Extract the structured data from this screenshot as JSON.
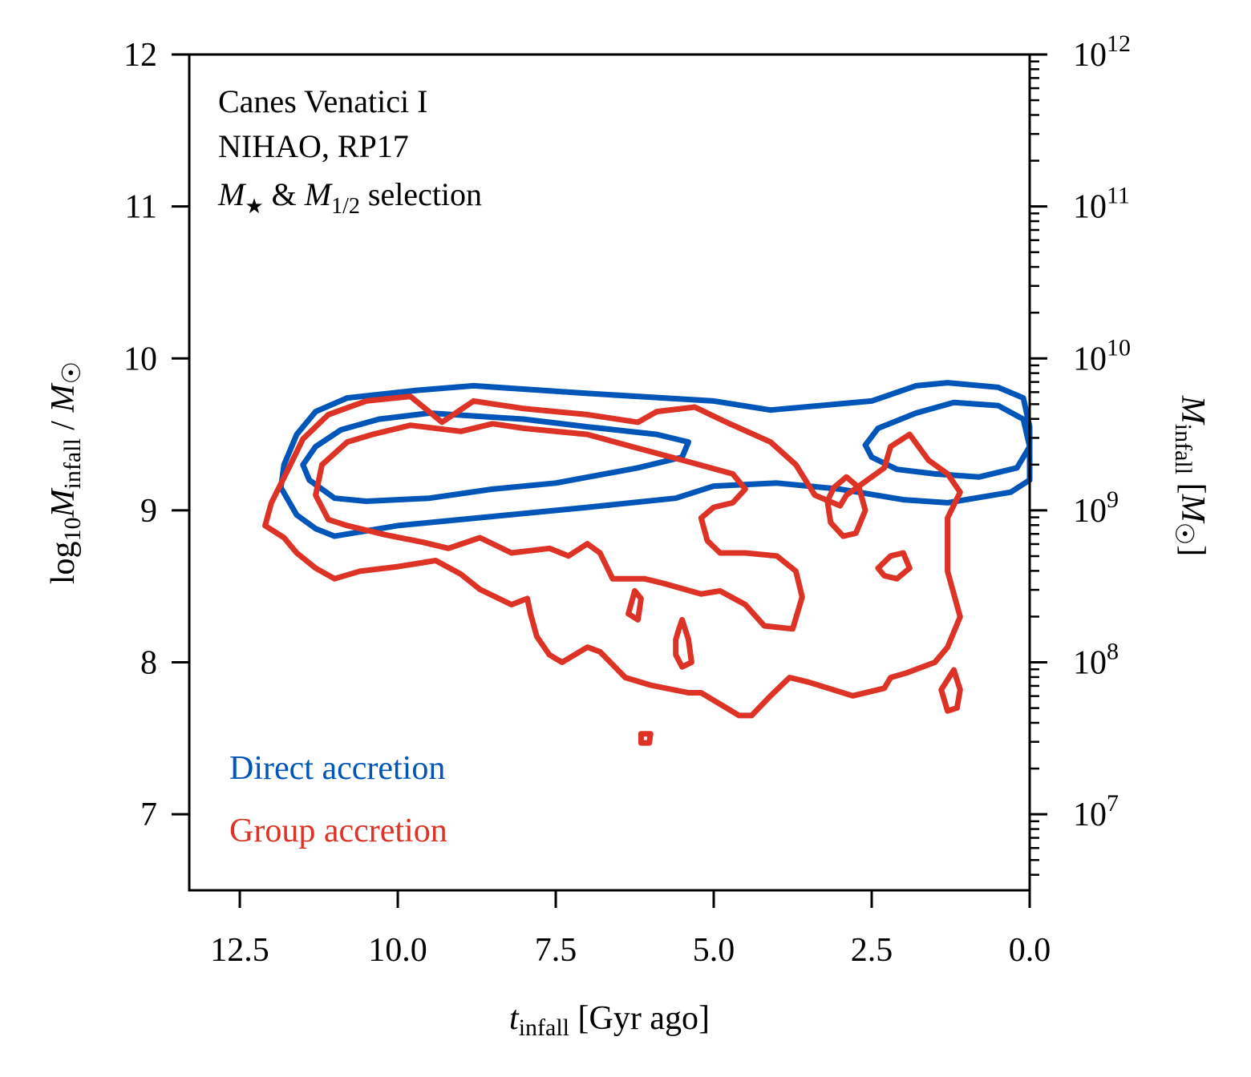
{
  "chart_data": {
    "type": "contour",
    "annotation": [
      "Canes Venatici I",
      "NIHAO, RP17",
      "M★ & M1/2 selection"
    ],
    "xlabel": "t_infall [Gyr ago]",
    "ylabel": "log10 M_infall / M☉",
    "ylabel_right": "M_infall [M☉]",
    "xlim": [
      13.3,
      0.0
    ],
    "ylim": [
      6.5,
      12.0
    ],
    "x_ticks": [
      12.5,
      10.0,
      7.5,
      5.0,
      2.5,
      0.0
    ],
    "x_tick_labels": [
      "12.5",
      "10.0",
      "7.5",
      "5.0",
      "2.5",
      "0.0"
    ],
    "y_ticks": [
      7,
      8,
      9,
      10,
      11,
      12
    ],
    "y_tick_labels": [
      "7",
      "8",
      "9",
      "10",
      "11",
      "12"
    ],
    "y2_tick_labels": [
      "10^7",
      "10^8",
      "10^9",
      "10^10",
      "10^11",
      "10^12"
    ],
    "series": [
      {
        "name": "Direct accretion",
        "color": "#0055b8",
        "contours": [
          [
            [
              11.8,
              9.3
            ],
            [
              11.6,
              9.5
            ],
            [
              11.3,
              9.65
            ],
            [
              10.8,
              9.74
            ],
            [
              9.7,
              9.79
            ],
            [
              8.8,
              9.82
            ],
            [
              7.0,
              9.77
            ],
            [
              5.0,
              9.72
            ],
            [
              4.1,
              9.66
            ],
            [
              2.5,
              9.72
            ],
            [
              1.8,
              9.82
            ],
            [
              1.3,
              9.84
            ],
            [
              0.5,
              9.81
            ],
            [
              0.1,
              9.74
            ],
            [
              0.0,
              9.55
            ],
            [
              0.0,
              9.2
            ],
            [
              0.3,
              9.12
            ],
            [
              1.3,
              9.05
            ],
            [
              2.0,
              9.07
            ],
            [
              3.0,
              9.14
            ],
            [
              4.0,
              9.18
            ],
            [
              5.0,
              9.16
            ],
            [
              5.6,
              9.08
            ],
            [
              7.0,
              9.02
            ],
            [
              8.5,
              8.96
            ],
            [
              10.0,
              8.9
            ],
            [
              11.0,
              8.83
            ],
            [
              11.3,
              8.88
            ],
            [
              11.6,
              8.97
            ],
            [
              11.85,
              9.15
            ],
            [
              11.8,
              9.3
            ]
          ],
          [
            [
              11.5,
              9.3
            ],
            [
              11.3,
              9.42
            ],
            [
              10.9,
              9.53
            ],
            [
              10.3,
              9.6
            ],
            [
              9.5,
              9.64
            ],
            [
              8.0,
              9.6
            ],
            [
              7.0,
              9.55
            ],
            [
              5.9,
              9.5
            ],
            [
              5.4,
              9.45
            ],
            [
              5.5,
              9.35
            ],
            [
              6.2,
              9.28
            ],
            [
              7.5,
              9.18
            ],
            [
              8.5,
              9.14
            ],
            [
              9.5,
              9.08
            ],
            [
              10.5,
              9.06
            ],
            [
              11.0,
              9.08
            ],
            [
              11.4,
              9.2
            ],
            [
              11.5,
              9.3
            ]
          ],
          [
            [
              2.6,
              9.43
            ],
            [
              2.4,
              9.54
            ],
            [
              1.8,
              9.64
            ],
            [
              1.2,
              9.71
            ],
            [
              0.5,
              9.69
            ],
            [
              0.1,
              9.6
            ],
            [
              0.0,
              9.42
            ],
            [
              0.2,
              9.28
            ],
            [
              0.8,
              9.22
            ],
            [
              1.5,
              9.24
            ],
            [
              2.1,
              9.27
            ],
            [
              2.5,
              9.35
            ],
            [
              2.6,
              9.43
            ]
          ]
        ]
      },
      {
        "name": "Group accretion",
        "color": "#dc3326",
        "contours": [
          [
            [
              12.1,
              8.9
            ],
            [
              12.0,
              9.05
            ],
            [
              11.7,
              9.3
            ],
            [
              11.5,
              9.47
            ],
            [
              11.1,
              9.63
            ],
            [
              10.5,
              9.72
            ],
            [
              9.8,
              9.75
            ],
            [
              9.3,
              9.58
            ],
            [
              8.8,
              9.72
            ],
            [
              8.0,
              9.67
            ],
            [
              7.0,
              9.63
            ],
            [
              6.2,
              9.58
            ],
            [
              5.9,
              9.65
            ],
            [
              5.3,
              9.68
            ],
            [
              4.8,
              9.58
            ],
            [
              4.1,
              9.45
            ],
            [
              3.7,
              9.3
            ],
            [
              3.4,
              9.1
            ],
            [
              3.0,
              9.03
            ],
            [
              2.9,
              9.1
            ],
            [
              2.3,
              9.28
            ],
            [
              2.2,
              9.42
            ],
            [
              1.9,
              9.5
            ],
            [
              1.6,
              9.33
            ],
            [
              1.3,
              9.24
            ],
            [
              1.1,
              9.12
            ],
            [
              1.3,
              8.95
            ],
            [
              1.3,
              8.6
            ],
            [
              1.1,
              8.3
            ],
            [
              1.3,
              8.1
            ],
            [
              1.5,
              8.0
            ],
            [
              1.95,
              7.93
            ],
            [
              2.2,
              7.9
            ],
            [
              2.3,
              7.83
            ],
            [
              2.8,
              7.78
            ],
            [
              3.5,
              7.87
            ],
            [
              3.8,
              7.9
            ],
            [
              4.1,
              7.78
            ],
            [
              4.4,
              7.65
            ],
            [
              4.6,
              7.65
            ],
            [
              4.8,
              7.7
            ],
            [
              5.2,
              7.8
            ],
            [
              5.4,
              7.8
            ],
            [
              6.0,
              7.85
            ],
            [
              6.4,
              7.9
            ],
            [
              6.8,
              8.07
            ],
            [
              7.0,
              8.1
            ],
            [
              7.4,
              8.0
            ],
            [
              7.6,
              8.05
            ],
            [
              7.8,
              8.17
            ],
            [
              7.9,
              8.32
            ],
            [
              7.95,
              8.42
            ],
            [
              8.2,
              8.38
            ],
            [
              8.7,
              8.48
            ],
            [
              9.0,
              8.58
            ],
            [
              9.4,
              8.67
            ],
            [
              10.0,
              8.63
            ],
            [
              10.6,
              8.6
            ],
            [
              11.0,
              8.55
            ],
            [
              11.3,
              8.62
            ],
            [
              11.6,
              8.72
            ],
            [
              11.8,
              8.82
            ],
            [
              12.1,
              8.9
            ]
          ],
          [
            [
              11.3,
              9.1
            ],
            [
              11.2,
              9.3
            ],
            [
              10.8,
              9.45
            ],
            [
              10.4,
              9.5
            ],
            [
              9.8,
              9.56
            ],
            [
              9.0,
              9.52
            ],
            [
              8.5,
              9.57
            ],
            [
              8.0,
              9.54
            ],
            [
              7.0,
              9.5
            ],
            [
              6.3,
              9.42
            ],
            [
              5.4,
              9.32
            ],
            [
              4.7,
              9.24
            ],
            [
              4.5,
              9.14
            ],
            [
              4.7,
              9.05
            ],
            [
              5.0,
              9.02
            ],
            [
              5.2,
              8.95
            ],
            [
              5.1,
              8.8
            ],
            [
              4.9,
              8.72
            ],
            [
              4.5,
              8.72
            ],
            [
              4.0,
              8.7
            ],
            [
              3.7,
              8.6
            ],
            [
              3.6,
              8.43
            ],
            [
              3.75,
              8.22
            ],
            [
              4.2,
              8.24
            ],
            [
              4.5,
              8.38
            ],
            [
              4.9,
              8.47
            ],
            [
              5.2,
              8.45
            ],
            [
              5.8,
              8.52
            ],
            [
              6.1,
              8.55
            ],
            [
              6.6,
              8.55
            ],
            [
              6.8,
              8.72
            ],
            [
              7.0,
              8.78
            ],
            [
              7.3,
              8.7
            ],
            [
              7.6,
              8.75
            ],
            [
              8.2,
              8.72
            ],
            [
              8.7,
              8.82
            ],
            [
              9.2,
              8.75
            ],
            [
              9.6,
              8.79
            ],
            [
              10.2,
              8.84
            ],
            [
              10.8,
              8.9
            ],
            [
              11.1,
              8.94
            ],
            [
              11.3,
              9.1
            ]
          ],
          [
            [
              3.2,
              9.06
            ],
            [
              3.1,
              9.15
            ],
            [
              2.9,
              9.22
            ],
            [
              2.7,
              9.15
            ],
            [
              2.6,
              9.0
            ],
            [
              2.75,
              8.85
            ],
            [
              2.95,
              8.83
            ],
            [
              3.15,
              8.92
            ],
            [
              3.2,
              9.06
            ]
          ],
          [
            [
              2.4,
              8.62
            ],
            [
              2.2,
              8.7
            ],
            [
              2.0,
              8.72
            ],
            [
              1.9,
              8.62
            ],
            [
              2.1,
              8.55
            ],
            [
              2.3,
              8.57
            ],
            [
              2.4,
              8.62
            ]
          ],
          [
            [
              6.35,
              8.32
            ],
            [
              6.25,
              8.47
            ],
            [
              6.15,
              8.42
            ],
            [
              6.2,
              8.28
            ],
            [
              6.35,
              8.32
            ]
          ],
          [
            [
              5.6,
              8.15
            ],
            [
              5.55,
              8.22
            ],
            [
              5.5,
              8.28
            ],
            [
              5.4,
              8.15
            ],
            [
              5.35,
              8.0
            ],
            [
              5.5,
              7.97
            ],
            [
              5.6,
              8.05
            ],
            [
              5.6,
              8.15
            ]
          ],
          [
            [
              1.4,
              7.82
            ],
            [
              1.2,
              7.95
            ],
            [
              1.1,
              7.82
            ],
            [
              1.15,
              7.7
            ],
            [
              1.3,
              7.68
            ],
            [
              1.4,
              7.82
            ]
          ],
          [
            [
              6.15,
              7.53
            ],
            [
              6.0,
              7.53
            ],
            [
              6.02,
              7.47
            ],
            [
              6.15,
              7.47
            ],
            [
              6.15,
              7.53
            ]
          ]
        ]
      }
    ],
    "legend": [
      "Direct accretion",
      "Group accretion"
    ]
  }
}
